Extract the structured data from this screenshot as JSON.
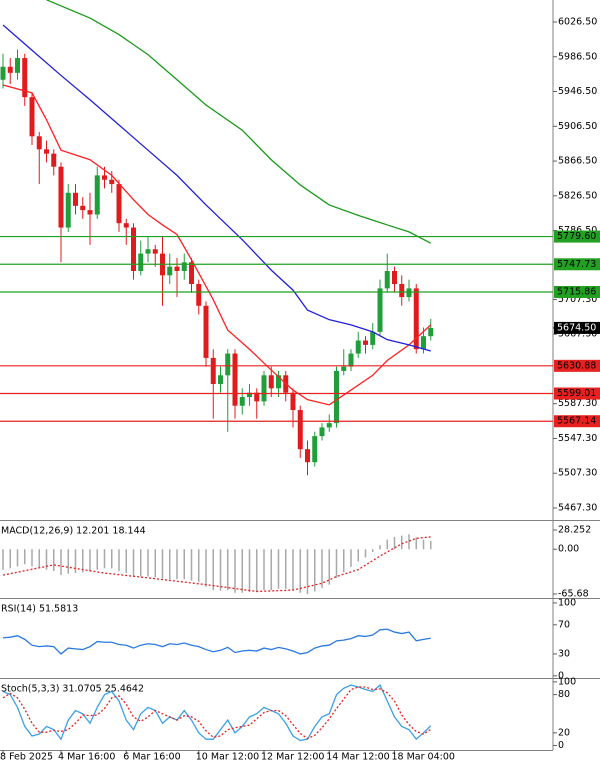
{
  "chart_data": [
    {
      "type": "candlestick",
      "categories": [
        "8 Feb 2025",
        null,
        null,
        null,
        null,
        null,
        null,
        null,
        "4 Mar 16:00",
        null,
        null,
        null,
        null,
        null,
        null,
        null,
        null,
        "6 Mar 16:00",
        null,
        null,
        null,
        null,
        null,
        null,
        null,
        null,
        null,
        "10 Mar 12:00",
        null,
        null,
        null,
        null,
        null,
        null,
        null,
        null,
        "12 Mar 12:00",
        null,
        null,
        null,
        null,
        null,
        null,
        null,
        null,
        "14 Mar 12:00",
        null,
        null,
        null,
        null,
        null,
        null,
        null,
        null,
        "18 Mar 04:00",
        null,
        null,
        null,
        null,
        null
      ],
      "open": [
        5960,
        5975,
        5968,
        5985,
        5940,
        5895,
        5880,
        5875,
        5860,
        5790,
        5830,
        5815,
        5810,
        5805,
        5850,
        5845,
        5840,
        5795,
        5790,
        5740,
        5760,
        5765,
        5760,
        5735,
        5745,
        5740,
        5750,
        5725,
        5700,
        5640,
        5610,
        5620,
        5645,
        5585,
        5595,
        5600,
        5590,
        5620,
        5605,
        5620,
        5600,
        5580,
        5535,
        5520,
        5550,
        5560,
        5565,
        5625,
        5630,
        5645,
        5660,
        5655,
        5670,
        5720,
        5740,
        5725,
        5710,
        5720,
        5650,
        5665
      ],
      "high": [
        5990,
        5985,
        5995,
        5990,
        5945,
        5900,
        5890,
        5880,
        5865,
        5840,
        5840,
        5825,
        5830,
        5860,
        5860,
        5855,
        5845,
        5800,
        5795,
        5775,
        5780,
        5770,
        5780,
        5760,
        5755,
        5760,
        5755,
        5730,
        5705,
        5650,
        5630,
        5650,
        5650,
        5605,
        5610,
        5605,
        5625,
        5630,
        5625,
        5625,
        5605,
        5585,
        5545,
        5555,
        5565,
        5575,
        5630,
        5650,
        5650,
        5670,
        5665,
        5680,
        5730,
        5760,
        5745,
        5735,
        5730,
        5725,
        5675,
        5685
      ],
      "low": [
        5950,
        5955,
        5960,
        5930,
        5885,
        5840,
        5865,
        5850,
        5750,
        5785,
        5805,
        5800,
        5770,
        5800,
        5835,
        5830,
        5785,
        5770,
        5730,
        5735,
        5750,
        5745,
        5700,
        5725,
        5710,
        5730,
        5715,
        5690,
        5630,
        5570,
        5600,
        5555,
        5570,
        5575,
        5585,
        5570,
        5585,
        5595,
        5595,
        5590,
        5560,
        5525,
        5505,
        5515,
        5545,
        5555,
        5560,
        5620,
        5625,
        5640,
        5645,
        5650,
        5665,
        5715,
        5715,
        5700,
        5705,
        5645,
        5645,
        5660
      ],
      "close": [
        5975,
        5968,
        5985,
        5940,
        5895,
        5880,
        5875,
        5860,
        5790,
        5830,
        5815,
        5810,
        5805,
        5850,
        5845,
        5840,
        5795,
        5790,
        5740,
        5760,
        5765,
        5760,
        5735,
        5745,
        5740,
        5750,
        5725,
        5700,
        5640,
        5610,
        5620,
        5645,
        5585,
        5595,
        5600,
        5590,
        5620,
        5605,
        5620,
        5600,
        5580,
        5535,
        5520,
        5550,
        5560,
        5565,
        5625,
        5630,
        5645,
        5660,
        5655,
        5670,
        5720,
        5740,
        5725,
        5710,
        5720,
        5650,
        5665,
        5674.5
      ],
      "up_color": "#1f9e3a",
      "down_color": "#e01b1b",
      "series": [
        {
          "color": "#ff2020",
          "x": [
            0,
            4,
            6,
            8,
            12,
            15,
            18,
            20,
            22,
            24,
            26,
            29,
            31,
            34,
            37,
            40,
            42,
            45,
            48,
            51,
            53,
            56,
            59
          ],
          "values": [
            5954,
            5945,
            5914,
            5879,
            5868,
            5850,
            5822,
            5805,
            5793,
            5782,
            5753,
            5707,
            5672,
            5650,
            5626,
            5603,
            5592,
            5586,
            5603,
            5620,
            5637,
            5655,
            5678
          ]
        },
        {
          "color": "#2020e0",
          "x": [
            0,
            4,
            8,
            12,
            16,
            20,
            24,
            28,
            33,
            37,
            40,
            42,
            45,
            48,
            51,
            53,
            56,
            59
          ],
          "values": [
            6023,
            5994,
            5965,
            5937,
            5908,
            5879,
            5850,
            5816,
            5776,
            5741,
            5718,
            5695,
            5684,
            5678,
            5670,
            5661,
            5655,
            5648
          ]
        },
        {
          "color": "#1a9a1a",
          "x": [
            6,
            12,
            16,
            20,
            24,
            28,
            33,
            37,
            41,
            45,
            49,
            53,
            56,
            59
          ],
          "values": [
            6052,
            6031,
            6012,
            5989,
            5960,
            5931,
            5902,
            5868,
            5839,
            5816,
            5804,
            5793,
            5785,
            5772
          ]
        }
      ],
      "levels": [
        {
          "value": 5779.6,
          "label": "5779.60",
          "color": "#22a022"
        },
        {
          "value": 5747.73,
          "label": "5747.73",
          "color": "#22a022"
        },
        {
          "value": 5715.86,
          "label": "5715.86",
          "color": "#22a022"
        },
        {
          "value": 5630.88,
          "label": "5630.88",
          "color": "#e82020"
        },
        {
          "value": 5599.01,
          "label": "5599.01",
          "color": "#e82020"
        },
        {
          "value": 5567.14,
          "label": "5567.14",
          "color": "#e82020"
        }
      ],
      "last_price": {
        "value": 5674.5,
        "label": "5674.50"
      },
      "ylim": [
        5453.5,
        6051.8
      ],
      "yticks": [
        {
          "value": 6026.5,
          "label": "6026.50"
        },
        {
          "value": 5986.5,
          "label": "5986.50"
        },
        {
          "value": 5946.5,
          "label": "5946.50"
        },
        {
          "value": 5906.5,
          "label": "5906.50"
        },
        {
          "value": 5866.5,
          "label": "5866.50"
        },
        {
          "value": 5826.5,
          "label": "5826.50"
        },
        {
          "value": 5786.5,
          "label": "5786.50"
        },
        {
          "value": 5707.3,
          "label": "5707.30"
        },
        {
          "value": 5667.3,
          "label": "5667.30"
        },
        {
          "value": 5587.3,
          "label": "5587.30"
        },
        {
          "value": 5547.3,
          "label": "5547.30"
        },
        {
          "value": 5507.3,
          "label": "5507.30"
        },
        {
          "value": 5467.3,
          "label": "5467.30"
        }
      ]
    },
    {
      "type": "bar",
      "title": "MACD(12,26,9) 12.201 18.144",
      "color": "#a8a8a8",
      "values": [
        -30,
        -28,
        -25,
        -22,
        -25,
        -28,
        -30,
        -32,
        -38,
        -36,
        -35,
        -34,
        -33,
        -30,
        -28,
        -28,
        -32,
        -35,
        -40,
        -40,
        -40,
        -41,
        -43,
        -44,
        -44,
        -44,
        -46,
        -48,
        -55,
        -60,
        -61,
        -60,
        -64,
        -64,
        -63,
        -63,
        -60,
        -60,
        -58,
        -58,
        -60,
        -64,
        -66,
        -62,
        -57,
        -52,
        -42,
        -34,
        -26,
        -18,
        -12,
        -4,
        6,
        14,
        18,
        20,
        22,
        17,
        14,
        12.201
      ],
      "series": [
        {
          "color": "#e82020",
          "dash": true,
          "x": [
            0,
            7,
            14,
            20,
            28,
            35,
            40,
            44,
            46,
            49,
            52,
            55,
            57,
            59
          ],
          "values": [
            -38,
            -23,
            -35,
            -42,
            -52,
            -62,
            -60,
            -50,
            -40,
            -30,
            -10,
            8,
            16,
            18.144
          ]
        }
      ],
      "ylim": [
        -71.6,
        40
      ],
      "yticks": [
        28.252,
        {
          "value": 0,
          "label": "0.00"
        },
        -65.68
      ]
    },
    {
      "type": "line",
      "title": "RSI(14) 51.5813",
      "series": [
        {
          "color": "#2a7ae0",
          "values": [
            52,
            53,
            55,
            50,
            42,
            40,
            41,
            40,
            30,
            38,
            37,
            36,
            40,
            47,
            46,
            46,
            43,
            42,
            38,
            42,
            44,
            43,
            40,
            44,
            43,
            45,
            42,
            40,
            36,
            33,
            35,
            39,
            32,
            34,
            35,
            34,
            38,
            36,
            39,
            37,
            34,
            30,
            32,
            38,
            41,
            42,
            48,
            49,
            51,
            55,
            54,
            56,
            63,
            64,
            60,
            58,
            60,
            48,
            50,
            51.5813
          ]
        }
      ],
      "ylim": [
        -3,
        104
      ],
      "yticks": [
        100,
        70,
        30,
        0
      ]
    },
    {
      "type": "line",
      "title": "Stoch(5,3,3) 31.0705 25.4642",
      "series": [
        {
          "color": "#3aa0e8",
          "values": [
            85,
            80,
            60,
            30,
            15,
            18,
            30,
            25,
            10,
            40,
            55,
            50,
            35,
            60,
            80,
            85,
            70,
            40,
            25,
            50,
            60,
            55,
            35,
            45,
            40,
            55,
            40,
            20,
            10,
            10,
            25,
            40,
            20,
            30,
            45,
            50,
            60,
            55,
            50,
            35,
            15,
            8,
            10,
            30,
            45,
            50,
            80,
            90,
            95,
            92,
            88,
            85,
            95,
            70,
            45,
            30,
            25,
            10,
            20,
            31.0705
          ]
        },
        {
          "color": "#e82020",
          "dash": true,
          "values": [
            75,
            82,
            75,
            57,
            35,
            21,
            21,
            24,
            22,
            25,
            35,
            48,
            47,
            48,
            58,
            75,
            78,
            65,
            45,
            38,
            45,
            55,
            50,
            45,
            40,
            47,
            45,
            38,
            23,
            13,
            15,
            25,
            28,
            30,
            32,
            42,
            52,
            55,
            55,
            47,
            33,
            19,
            11,
            16,
            28,
            42,
            58,
            73,
            88,
            92,
            92,
            88,
            89,
            83,
            70,
            48,
            33,
            22,
            18,
            25.4642
          ]
        }
      ],
      "ylim": [
        -7,
        103
      ],
      "yticks": [
        100,
        80,
        20,
        0
      ]
    }
  ]
}
